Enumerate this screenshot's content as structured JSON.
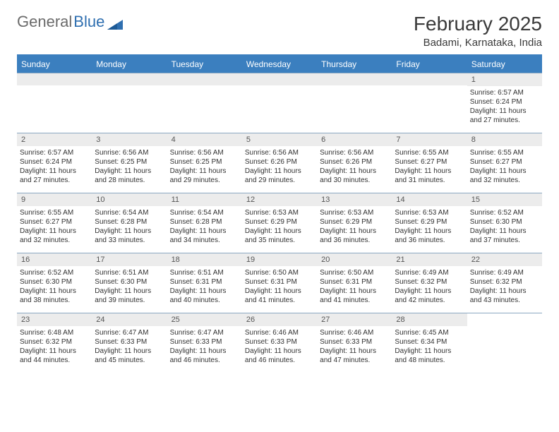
{
  "logo": {
    "word1": "General",
    "word2": "Blue"
  },
  "title": "February 2025",
  "location": "Badami, Karnataka, India",
  "colors": {
    "header_bar": "#3b7fbf",
    "header_text": "#ffffff",
    "daynum_bg": "#ececec",
    "week_border": "#8aa8c2",
    "body_text": "#333333",
    "logo_gray": "#6b6b6b",
    "logo_blue": "#2f6fb0"
  },
  "dow": [
    "Sunday",
    "Monday",
    "Tuesday",
    "Wednesday",
    "Thursday",
    "Friday",
    "Saturday"
  ],
  "weeks": [
    [
      null,
      null,
      null,
      null,
      null,
      null,
      {
        "n": "1",
        "sr": "Sunrise: 6:57 AM",
        "ss": "Sunset: 6:24 PM",
        "dl": "Daylight: 11 hours and 27 minutes."
      }
    ],
    [
      {
        "n": "2",
        "sr": "Sunrise: 6:57 AM",
        "ss": "Sunset: 6:24 PM",
        "dl": "Daylight: 11 hours and 27 minutes."
      },
      {
        "n": "3",
        "sr": "Sunrise: 6:56 AM",
        "ss": "Sunset: 6:25 PM",
        "dl": "Daylight: 11 hours and 28 minutes."
      },
      {
        "n": "4",
        "sr": "Sunrise: 6:56 AM",
        "ss": "Sunset: 6:25 PM",
        "dl": "Daylight: 11 hours and 29 minutes."
      },
      {
        "n": "5",
        "sr": "Sunrise: 6:56 AM",
        "ss": "Sunset: 6:26 PM",
        "dl": "Daylight: 11 hours and 29 minutes."
      },
      {
        "n": "6",
        "sr": "Sunrise: 6:56 AM",
        "ss": "Sunset: 6:26 PM",
        "dl": "Daylight: 11 hours and 30 minutes."
      },
      {
        "n": "7",
        "sr": "Sunrise: 6:55 AM",
        "ss": "Sunset: 6:27 PM",
        "dl": "Daylight: 11 hours and 31 minutes."
      },
      {
        "n": "8",
        "sr": "Sunrise: 6:55 AM",
        "ss": "Sunset: 6:27 PM",
        "dl": "Daylight: 11 hours and 32 minutes."
      }
    ],
    [
      {
        "n": "9",
        "sr": "Sunrise: 6:55 AM",
        "ss": "Sunset: 6:27 PM",
        "dl": "Daylight: 11 hours and 32 minutes."
      },
      {
        "n": "10",
        "sr": "Sunrise: 6:54 AM",
        "ss": "Sunset: 6:28 PM",
        "dl": "Daylight: 11 hours and 33 minutes."
      },
      {
        "n": "11",
        "sr": "Sunrise: 6:54 AM",
        "ss": "Sunset: 6:28 PM",
        "dl": "Daylight: 11 hours and 34 minutes."
      },
      {
        "n": "12",
        "sr": "Sunrise: 6:53 AM",
        "ss": "Sunset: 6:29 PM",
        "dl": "Daylight: 11 hours and 35 minutes."
      },
      {
        "n": "13",
        "sr": "Sunrise: 6:53 AM",
        "ss": "Sunset: 6:29 PM",
        "dl": "Daylight: 11 hours and 36 minutes."
      },
      {
        "n": "14",
        "sr": "Sunrise: 6:53 AM",
        "ss": "Sunset: 6:29 PM",
        "dl": "Daylight: 11 hours and 36 minutes."
      },
      {
        "n": "15",
        "sr": "Sunrise: 6:52 AM",
        "ss": "Sunset: 6:30 PM",
        "dl": "Daylight: 11 hours and 37 minutes."
      }
    ],
    [
      {
        "n": "16",
        "sr": "Sunrise: 6:52 AM",
        "ss": "Sunset: 6:30 PM",
        "dl": "Daylight: 11 hours and 38 minutes."
      },
      {
        "n": "17",
        "sr": "Sunrise: 6:51 AM",
        "ss": "Sunset: 6:30 PM",
        "dl": "Daylight: 11 hours and 39 minutes."
      },
      {
        "n": "18",
        "sr": "Sunrise: 6:51 AM",
        "ss": "Sunset: 6:31 PM",
        "dl": "Daylight: 11 hours and 40 minutes."
      },
      {
        "n": "19",
        "sr": "Sunrise: 6:50 AM",
        "ss": "Sunset: 6:31 PM",
        "dl": "Daylight: 11 hours and 41 minutes."
      },
      {
        "n": "20",
        "sr": "Sunrise: 6:50 AM",
        "ss": "Sunset: 6:31 PM",
        "dl": "Daylight: 11 hours and 41 minutes."
      },
      {
        "n": "21",
        "sr": "Sunrise: 6:49 AM",
        "ss": "Sunset: 6:32 PM",
        "dl": "Daylight: 11 hours and 42 minutes."
      },
      {
        "n": "22",
        "sr": "Sunrise: 6:49 AM",
        "ss": "Sunset: 6:32 PM",
        "dl": "Daylight: 11 hours and 43 minutes."
      }
    ],
    [
      {
        "n": "23",
        "sr": "Sunrise: 6:48 AM",
        "ss": "Sunset: 6:32 PM",
        "dl": "Daylight: 11 hours and 44 minutes."
      },
      {
        "n": "24",
        "sr": "Sunrise: 6:47 AM",
        "ss": "Sunset: 6:33 PM",
        "dl": "Daylight: 11 hours and 45 minutes."
      },
      {
        "n": "25",
        "sr": "Sunrise: 6:47 AM",
        "ss": "Sunset: 6:33 PM",
        "dl": "Daylight: 11 hours and 46 minutes."
      },
      {
        "n": "26",
        "sr": "Sunrise: 6:46 AM",
        "ss": "Sunset: 6:33 PM",
        "dl": "Daylight: 11 hours and 46 minutes."
      },
      {
        "n": "27",
        "sr": "Sunrise: 6:46 AM",
        "ss": "Sunset: 6:33 PM",
        "dl": "Daylight: 11 hours and 47 minutes."
      },
      {
        "n": "28",
        "sr": "Sunrise: 6:45 AM",
        "ss": "Sunset: 6:34 PM",
        "dl": "Daylight: 11 hours and 48 minutes."
      },
      null
    ]
  ]
}
